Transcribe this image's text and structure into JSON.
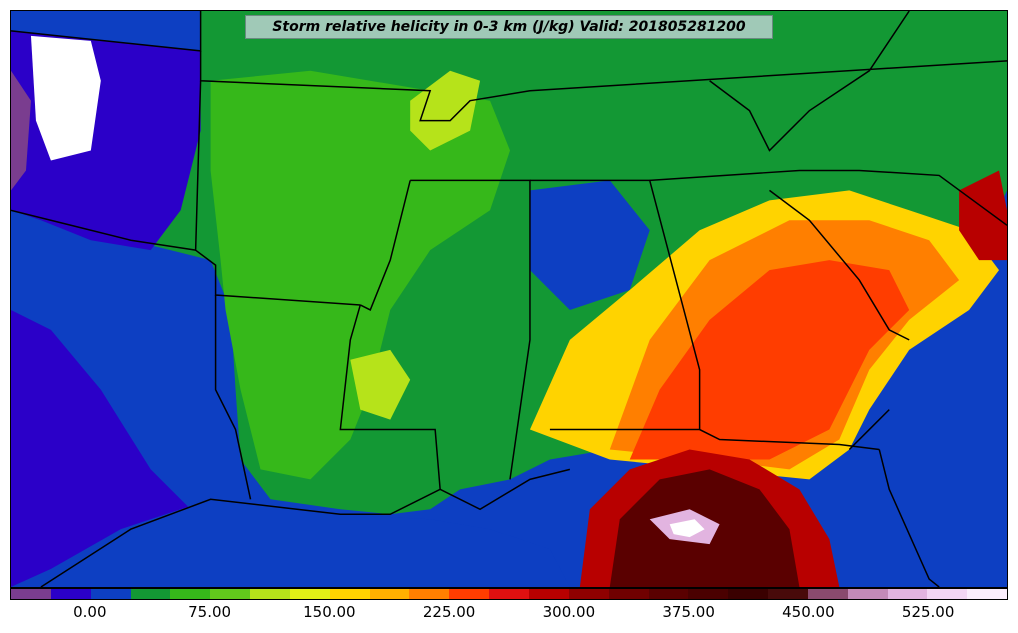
{
  "title": "Storm relative helicity in 0-3 km (J/kg) Valid: 201805281200",
  "colorbar": {
    "colors": [
      "#7a3d8f",
      "#2b00c8",
      "#0d3fc2",
      "#139834",
      "#36b81a",
      "#62c91c",
      "#b6e31a",
      "#e3f016",
      "#ffd300",
      "#ffb000",
      "#ff7f00",
      "#ff3d00",
      "#e01010",
      "#b80000",
      "#8f0000",
      "#700000",
      "#5a0000",
      "#4a0000",
      "#3a0000",
      "#480a0a",
      "#8a4a6e",
      "#c48ab8",
      "#e2b4e0",
      "#f3d6f4",
      "#fbeefd"
    ],
    "labels": [
      "0.00",
      "75.00",
      "150.00",
      "225.00",
      "300.00",
      "375.00",
      "450.00",
      "525.00"
    ]
  },
  "map_colors": {
    "ocean": "#0d3fc2",
    "purple": "#7a3d8f",
    "violet": "#2b00c8",
    "green_dark": "#139834",
    "green": "#36b81a",
    "green_light": "#62c91c",
    "lime": "#b6e31a",
    "yellow": "#ffd300",
    "orange": "#ff7f00",
    "red": "#ff3d00",
    "dark_red": "#b80000",
    "maroon": "#5a0000",
    "pink": "#e2b4e0",
    "white": "#ffffff",
    "border": "#000000"
  }
}
